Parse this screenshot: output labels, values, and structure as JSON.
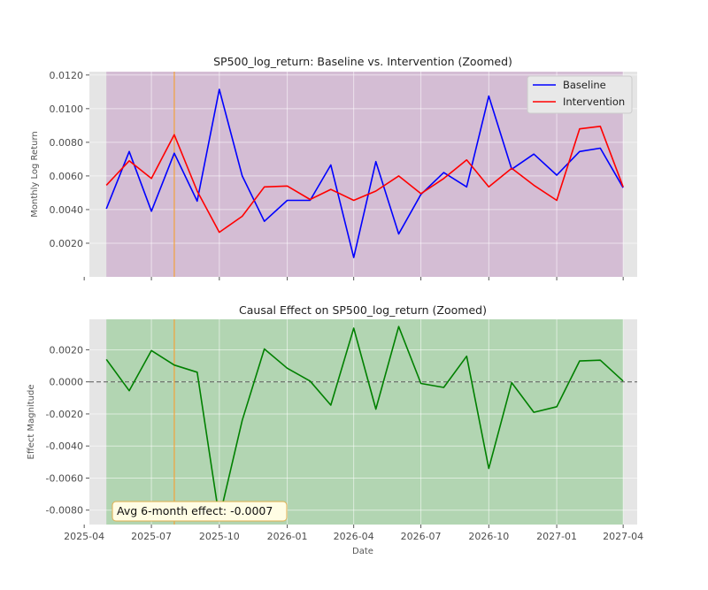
{
  "chart_data": [
    {
      "type": "line",
      "title": "SP500_log_return: Baseline vs. Intervention (Zoomed)",
      "xlabel": "",
      "ylabel": "Monthly Log Return",
      "x": [
        "2025-05-01",
        "2025-06-01",
        "2025-07-01",
        "2025-08-01",
        "2025-09-01",
        "2025-10-01",
        "2025-11-01",
        "2025-12-01",
        "2026-01-01",
        "2026-02-01",
        "2026-03-01",
        "2026-04-01",
        "2026-05-01",
        "2026-06-01",
        "2026-07-01",
        "2026-08-01",
        "2026-09-01",
        "2026-10-01",
        "2026-11-01",
        "2026-12-01",
        "2027-01-01",
        "2027-02-01",
        "2027-03-01",
        "2027-04-01"
      ],
      "series": [
        {
          "name": "Baseline",
          "color": "#0000ff",
          "values": [
            0.00405,
            0.00745,
            0.0039,
            0.00735,
            0.0045,
            0.01115,
            0.006,
            0.0033,
            0.00455,
            0.00455,
            0.00665,
            0.00115,
            0.00685,
            0.00255,
            0.0049,
            0.0062,
            0.00535,
            0.01075,
            0.0064,
            0.0073,
            0.00605,
            0.00745,
            0.00765,
            0.0053
          ]
        },
        {
          "name": "Intervention",
          "color": "#ff0000",
          "values": [
            0.00545,
            0.0069,
            0.00585,
            0.00845,
            0.0051,
            0.00265,
            0.0036,
            0.00535,
            0.0054,
            0.0046,
            0.0052,
            0.00455,
            0.0051,
            0.006,
            0.00495,
            0.00585,
            0.00695,
            0.00535,
            0.00645,
            0.00545,
            0.00455,
            0.0088,
            0.00895,
            0.00535
          ]
        }
      ],
      "ylim": [
        0.0,
        0.0122
      ],
      "yticks": [
        0.002,
        0.004,
        0.006,
        0.008,
        0.01,
        0.012
      ],
      "ytick_labels": [
        "0.0020",
        "0.0040",
        "0.0060",
        "0.0080",
        "0.0100",
        "0.0120"
      ],
      "xlim": [
        "2025-04-08",
        "2027-04-20"
      ],
      "xticks": [
        "2025-04-01",
        "2025-07-01",
        "2025-10-01",
        "2026-01-01",
        "2026-04-01",
        "2026-07-01",
        "2026-10-01",
        "2027-01-01",
        "2027-04-01"
      ],
      "shaded_span": [
        "2025-05-01",
        "2027-04-01"
      ],
      "shade_color": "#c8a2c8",
      "vline": "2025-08-01",
      "vline_color": "#f2a23c",
      "legend_position": "top-right",
      "grid": true
    },
    {
      "type": "line",
      "title": "Causal Effect on SP500_log_return (Zoomed)",
      "xlabel": "Date",
      "ylabel": "Effect Magnitude",
      "x": [
        "2025-05-01",
        "2025-06-01",
        "2025-07-01",
        "2025-08-01",
        "2025-09-01",
        "2025-10-01",
        "2025-11-01",
        "2025-12-01",
        "2026-01-01",
        "2026-02-01",
        "2026-03-01",
        "2026-04-01",
        "2026-05-01",
        "2026-06-01",
        "2026-07-01",
        "2026-08-01",
        "2026-09-01",
        "2026-10-01",
        "2026-11-01",
        "2026-12-01",
        "2027-01-01",
        "2027-02-01",
        "2027-03-01",
        "2027-04-01"
      ],
      "series": [
        {
          "color": "#008000",
          "values": [
            0.0014,
            -0.00055,
            0.00195,
            0.00105,
            0.0006,
            -0.0085,
            -0.0024,
            0.00205,
            0.00085,
            5e-05,
            -0.00145,
            0.00335,
            -0.0017,
            0.00345,
            -0.0001,
            -0.00035,
            0.0016,
            -0.0054,
            -5e-05,
            -0.0019,
            -0.00155,
            0.0013,
            0.00135,
            5e-05
          ]
        }
      ],
      "ylim": [
        -0.0089,
        0.0039
      ],
      "yticks": [
        -0.008,
        -0.006,
        -0.004,
        -0.002,
        0.0,
        0.002
      ],
      "ytick_labels": [
        "-0.0080",
        "-0.0060",
        "-0.0040",
        "-0.0020",
        "0.0000",
        "0.0020"
      ],
      "xlim": [
        "2025-04-08",
        "2027-04-20"
      ],
      "xticks": [
        "2025-04-01",
        "2025-07-01",
        "2025-10-01",
        "2026-01-01",
        "2026-04-01",
        "2026-07-01",
        "2026-10-01",
        "2027-01-01",
        "2027-04-01"
      ],
      "xtick_labels": [
        "2025-04",
        "2025-07",
        "2025-10",
        "2026-01",
        "2026-04",
        "2026-07",
        "2026-10",
        "2027-01",
        "2027-04"
      ],
      "shaded_span": [
        "2025-05-01",
        "2027-04-01"
      ],
      "shade_color": "#90c990",
      "vline": "2025-08-01",
      "vline_color": "#f2a23c",
      "zero_line": 0,
      "annotation": "Avg 6-month effect: -0.0007",
      "grid": true
    }
  ]
}
